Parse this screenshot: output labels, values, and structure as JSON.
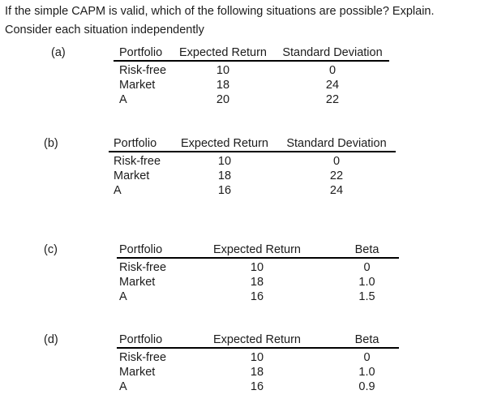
{
  "question": {
    "line1": "If the simple CAPM is valid, which of the following situations are possible? Explain.",
    "line2": "Consider each situation independently"
  },
  "tables": [
    {
      "label": "(a)",
      "columns": {
        "c1": "Portfolio",
        "c2": "Expected Return",
        "c3": "Standard Deviation"
      },
      "rows": [
        {
          "c1": "Risk-free",
          "c2": "10",
          "c3": "0"
        },
        {
          "c1": "Market",
          "c2": "18",
          "c3": "24"
        },
        {
          "c1": "A",
          "c2": "20",
          "c3": "22"
        }
      ]
    },
    {
      "label": "(b)",
      "columns": {
        "c1": "Portfolio",
        "c2": "Expected Return",
        "c3": "Standard Deviation"
      },
      "rows": [
        {
          "c1": "Risk-free",
          "c2": "10",
          "c3": "0"
        },
        {
          "c1": "Market",
          "c2": "18",
          "c3": "22"
        },
        {
          "c1": "A",
          "c2": "16",
          "c3": "24"
        }
      ]
    },
    {
      "label": "(c)",
      "columns": {
        "c1": "Portfolio",
        "c2": "Expected Return",
        "c3": "Beta"
      },
      "rows": [
        {
          "c1": "Risk-free",
          "c2": "10",
          "c3": "0"
        },
        {
          "c1": "Market",
          "c2": "18",
          "c3": "1.0"
        },
        {
          "c1": "A",
          "c2": "16",
          "c3": "1.5"
        }
      ]
    },
    {
      "label": "(d)",
      "columns": {
        "c1": "Portfolio",
        "c2": "Expected Return",
        "c3": "Beta"
      },
      "rows": [
        {
          "c1": "Risk-free",
          "c2": "10",
          "c3": "0"
        },
        {
          "c1": "Market",
          "c2": "18",
          "c3": "1.0"
        },
        {
          "c1": "A",
          "c2": "16",
          "c3": "0.9"
        }
      ]
    }
  ],
  "colors": {
    "background": "#ffffff",
    "text": "#1c1c1c",
    "rule": "#000000"
  }
}
